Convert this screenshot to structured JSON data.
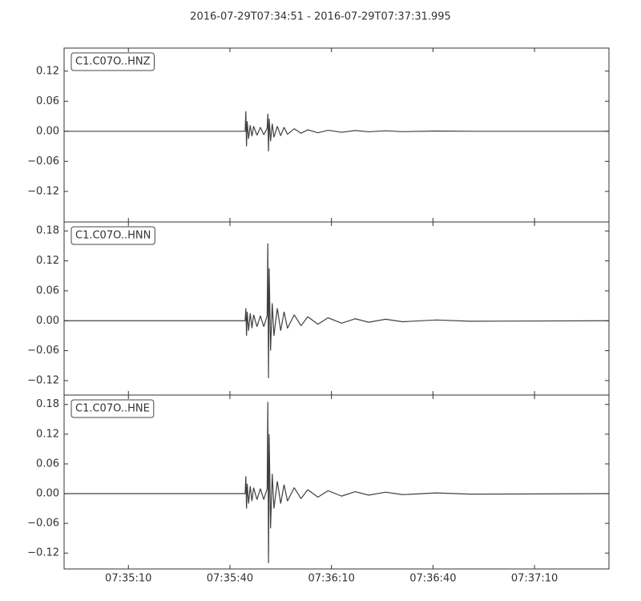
{
  "chart_data": {
    "type": "line",
    "title": "2016-07-29T07:34:51  -  2016-07-29T07:37:31.995",
    "color": "#404040",
    "xlim": [
      0,
      160.995
    ],
    "xticks": [
      {
        "value": 19,
        "label": "07:35:10"
      },
      {
        "value": 49,
        "label": "07:35:40"
      },
      {
        "value": 79,
        "label": "07:36:10"
      },
      {
        "value": 109,
        "label": "07:36:40"
      },
      {
        "value": 139,
        "label": "07:37:10"
      }
    ],
    "x": [
      0,
      53.5,
      53.7,
      53.9,
      54.1,
      54.5,
      55,
      55.5,
      56,
      57,
      58,
      59,
      60,
      60.2,
      60.4,
      60.6,
      61,
      61.5,
      62,
      63,
      64,
      65,
      66,
      68,
      70,
      72,
      75,
      78,
      82,
      86,
      90,
      95,
      100,
      110,
      120,
      160.995
    ],
    "series": [
      {
        "name": "C1.C07O..HNZ",
        "ylim": [
          -0.181,
          0.166
        ],
        "yticks": [
          {
            "value": -0.12,
            "label": "−0.12"
          },
          {
            "value": -0.06,
            "label": "−0.06"
          },
          {
            "value": 0,
            "label": "0.00"
          },
          0.06,
          0.12
        ],
        "values": [
          0,
          0,
          0.04,
          -0.03,
          0.02,
          -0.015,
          0.012,
          -0.01,
          0.01,
          -0.008,
          0.008,
          -0.007,
          0.006,
          0.035,
          -0.04,
          0.025,
          -0.02,
          0.015,
          -0.012,
          0.01,
          -0.009,
          0.008,
          -0.006,
          0.005,
          -0.004,
          0.003,
          -0.003,
          0.002,
          -0.002,
          0.0015,
          -0.001,
          0.001,
          -0.0008,
          0.0005,
          0,
          0
        ]
      },
      {
        "name": "C1.C07O..HNN",
        "ylim": [
          -0.149,
          0.198
        ],
        "yticks": [
          {
            "value": -0.12,
            "label": "−0.12"
          },
          {
            "value": -0.06,
            "label": "−0.06"
          },
          {
            "value": 0,
            "label": "0.00"
          },
          0.06,
          0.12,
          0.18
        ],
        "values": [
          0,
          0,
          0.025,
          -0.03,
          0.018,
          -0.02,
          0.015,
          -0.015,
          0.012,
          -0.012,
          0.01,
          -0.012,
          0.01,
          0.155,
          -0.115,
          0.105,
          -0.06,
          0.035,
          -0.03,
          0.025,
          -0.02,
          0.018,
          -0.015,
          0.012,
          -0.01,
          0.008,
          -0.007,
          0.006,
          -0.005,
          0.004,
          -0.003,
          0.003,
          -0.002,
          0.0015,
          -0.001,
          0
        ]
      },
      {
        "name": "C1.C07O..HNE",
        "ylim": [
          -0.152,
          0.199
        ],
        "yticks": [
          {
            "value": -0.12,
            "label": "−0.12"
          },
          {
            "value": -0.06,
            "label": "−0.06"
          },
          {
            "value": 0,
            "label": "0.00"
          },
          0.06,
          0.12,
          0.18
        ],
        "values": [
          0,
          0,
          0.035,
          -0.03,
          0.02,
          -0.02,
          0.015,
          -0.015,
          0.012,
          -0.012,
          0.01,
          -0.012,
          0.01,
          0.185,
          -0.14,
          0.12,
          -0.07,
          0.04,
          -0.03,
          0.025,
          -0.02,
          0.018,
          -0.015,
          0.012,
          -0.01,
          0.008,
          -0.007,
          0.006,
          -0.005,
          0.004,
          -0.003,
          0.003,
          -0.002,
          0.0015,
          -0.001,
          0
        ]
      }
    ]
  }
}
